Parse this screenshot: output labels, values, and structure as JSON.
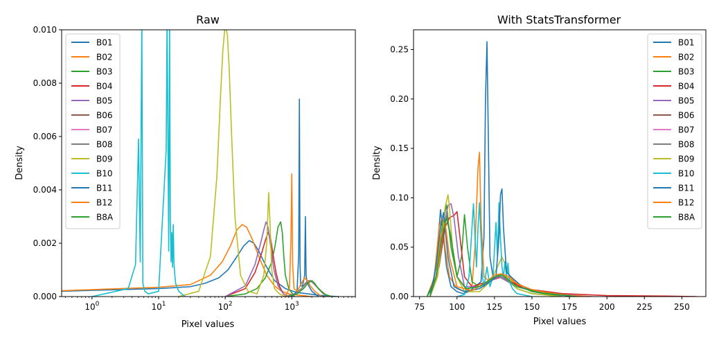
{
  "chart_data": [
    {
      "type": "line",
      "title": "Raw",
      "xlabel": "Pixel values",
      "ylabel": "Density",
      "xscale": "log",
      "xlim": [
        0.35,
        9000
      ],
      "ylim": [
        0,
        0.01
      ],
      "x_ticks": [
        1,
        10,
        100,
        1000
      ],
      "x_tick_labels": [
        "10",
        "10",
        "10",
        "10"
      ],
      "x_tick_exponents": [
        "0",
        "1",
        "2",
        "3"
      ],
      "y_ticks": [
        0,
        0.002,
        0.004,
        0.006,
        0.008,
        0.01
      ],
      "y_tick_labels": [
        "0.000",
        "0.002",
        "0.004",
        "0.006",
        "0.008",
        "0.010"
      ],
      "legend_position": "top-left",
      "grid": false,
      "series": [
        {
          "name": "B01",
          "color": "#1f77b4",
          "x": [
            0.35,
            10,
            30,
            50,
            80,
            110,
            150,
            190,
            230,
            270,
            320,
            400,
            550,
            800,
            1200,
            1800,
            2500,
            3500,
            5000
          ],
          "y": [
            0.0002,
            0.0003,
            0.00037,
            0.0005,
            0.0007,
            0.001,
            0.0015,
            0.0019,
            0.0021,
            0.002,
            0.0017,
            0.0012,
            0.0006,
            0.0003,
            0.00015,
            0.0001,
            5e-05,
            2e-05,
            0
          ]
        },
        {
          "name": "B02",
          "color": "#ff7f0e",
          "x": [
            0.35,
            10,
            30,
            60,
            90,
            120,
            150,
            180,
            210,
            250,
            320,
            420,
            550,
            700,
            900,
            1300,
            2000
          ],
          "y": [
            0.00022,
            0.00035,
            0.00045,
            0.0008,
            0.0013,
            0.0019,
            0.0025,
            0.0027,
            0.0026,
            0.0022,
            0.0015,
            0.0008,
            0.0004,
            0.0002,
            0.0001,
            5e-05,
            0
          ]
        },
        {
          "name": "B03",
          "color": "#2ca02c",
          "x": [
            100,
            200,
            300,
            400,
            500,
            560,
            620,
            680,
            720,
            760,
            800,
            900,
            1100
          ],
          "y": [
            0,
            0.0001,
            0.0003,
            0.0007,
            0.0013,
            0.0019,
            0.0026,
            0.0028,
            0.0024,
            0.0015,
            0.0008,
            0.0003,
            0
          ]
        },
        {
          "name": "B04",
          "color": "#d62728",
          "x": [
            100,
            200,
            280,
            350,
            400,
            440,
            480,
            520,
            580,
            650,
            750,
            900
          ],
          "y": [
            0,
            0.0003,
            0.0009,
            0.0016,
            0.0021,
            0.0024,
            0.0022,
            0.0016,
            0.0009,
            0.0004,
            0.0001,
            0
          ]
        },
        {
          "name": "B05",
          "color": "#9467bd",
          "x": [
            100,
            200,
            280,
            340,
            380,
            410,
            440,
            480,
            540,
            620,
            750,
            900
          ],
          "y": [
            0,
            0.0004,
            0.0012,
            0.002,
            0.0025,
            0.0028,
            0.0026,
            0.0019,
            0.001,
            0.0004,
            0.0001,
            0
          ]
        },
        {
          "name": "B06",
          "color": "#8c564b",
          "x": [
            800,
            1100,
            1400,
            1600,
            1800,
            2000,
            2300,
            2800,
            3500
          ],
          "y": [
            0,
            0.0001,
            0.0003,
            0.0005,
            0.0006,
            0.00055,
            0.0004,
            0.0002,
            0
          ]
        },
        {
          "name": "B07",
          "color": "#e377c2",
          "x": [
            800,
            1100,
            1400,
            1650,
            1850,
            2100,
            2400,
            2900,
            3600
          ],
          "y": [
            0,
            0.0001,
            0.0003,
            0.0005,
            0.0006,
            0.0005,
            0.00035,
            0.00015,
            0
          ]
        },
        {
          "name": "B08",
          "color": "#7f7f7f",
          "x": [
            800,
            1100,
            1400,
            1650,
            1900,
            2150,
            2500,
            3000,
            3800
          ],
          "y": [
            0,
            0.0001,
            0.0003,
            0.0005,
            0.0006,
            0.0005,
            0.0003,
            0.0001,
            0
          ]
        },
        {
          "name": "B09",
          "color": "#bcbd22",
          "x": [
            20,
            40,
            60,
            75,
            85,
            92,
            100,
            108,
            115,
            125,
            140,
            170,
            220,
            300,
            380,
            420,
            450,
            470,
            500,
            550,
            650,
            800
          ],
          "y": [
            0,
            0.0002,
            0.0015,
            0.0045,
            0.0075,
            0.0092,
            0.0102,
            0.0098,
            0.0085,
            0.006,
            0.003,
            0.0008,
            0.0002,
            0.0001,
            0.0008,
            0.002,
            0.0039,
            0.0028,
            0.001,
            0.0003,
            0.0001,
            0
          ]
        },
        {
          "name": "B10",
          "color": "#17becf",
          "x": [
            1,
            3.5,
            4.5,
            5.0,
            5.3,
            5.6,
            5.8,
            6.2,
            7,
            10,
            13,
            13.4,
            13.8,
            14.2,
            14.6,
            15.0,
            15.4,
            15.8,
            16.2,
            16.6,
            17.0,
            17.4,
            18,
            20,
            25
          ],
          "y": [
            0,
            0.0003,
            0.0012,
            0.0059,
            0.0013,
            0.0105,
            0.0005,
            0.0002,
            0.0001,
            0.0002,
            0.0055,
            0.0105,
            0.006,
            0.0017,
            0.0105,
            0.003,
            0.0013,
            0.0024,
            0.0011,
            0.0027,
            0.0013,
            0.0009,
            0.0005,
            0.0002,
            0
          ]
        },
        {
          "name": "B11",
          "color": "#1f77b4",
          "x": [
            1000,
            1200,
            1270,
            1300,
            1330,
            1360,
            1450,
            1560,
            1600,
            1640,
            1680,
            1800,
            2000,
            2500
          ],
          "y": [
            0,
            0.0002,
            0.0016,
            0.0074,
            0.0012,
            0.0004,
            0.0004,
            0.0008,
            0.003,
            0.0008,
            0.0006,
            0.0004,
            0.0002,
            0
          ]
        },
        {
          "name": "B12",
          "color": "#ff7f0e",
          "x": [
            800,
            920,
            970,
            1000,
            1030,
            1080,
            1200,
            1400,
            1550,
            1700,
            1900,
            2200,
            2800
          ],
          "y": [
            0,
            0.0003,
            0.002,
            0.0046,
            0.0012,
            0.0003,
            0.0002,
            0.0005,
            0.0007,
            0.0006,
            0.0004,
            0.0002,
            0
          ]
        },
        {
          "name": "B8A",
          "color": "#2ca02c",
          "x": [
            900,
            1200,
            1500,
            1750,
            2000,
            2200,
            2500,
            3000,
            4000
          ],
          "y": [
            0,
            0.0001,
            0.0003,
            0.0005,
            0.0006,
            0.0005,
            0.0003,
            0.0001,
            0
          ]
        }
      ]
    },
    {
      "type": "line",
      "title": "With StatsTransformer",
      "xlabel": "Pixel values",
      "ylabel": "Density",
      "xlim": [
        71,
        266
      ],
      "ylim": [
        0,
        0.27
      ],
      "x_ticks": [
        75,
        100,
        125,
        150,
        175,
        200,
        225,
        250
      ],
      "x_tick_labels": [
        "75",
        "100",
        "125",
        "150",
        "175",
        "200",
        "225",
        "250"
      ],
      "y_ticks": [
        0,
        0.05,
        0.1,
        0.15,
        0.2,
        0.25
      ],
      "y_tick_labels": [
        "0.00",
        "0.05",
        "0.10",
        "0.15",
        "0.20",
        "0.25"
      ],
      "legend_position": "top-right",
      "grid": false,
      "series": [
        {
          "name": "B01",
          "color": "#1f77b4",
          "x": [
            80,
            84,
            87,
            89,
            91,
            93,
            96,
            100,
            104,
            108,
            112,
            116,
            118,
            119,
            120,
            121,
            122,
            124,
            127,
            130,
            135,
            140,
            150,
            170
          ],
          "y": [
            0,
            0.01,
            0.05,
            0.088,
            0.06,
            0.03,
            0.01,
            0.005,
            0.003,
            0.005,
            0.01,
            0.015,
            0.06,
            0.2,
            0.258,
            0.15,
            0.04,
            0.02,
            0.02,
            0.02,
            0.015,
            0.008,
            0.003,
            0
          ]
        },
        {
          "name": "B02",
          "color": "#ff7f0e",
          "x": [
            80,
            85,
            88,
            90,
            92,
            95,
            100,
            105,
            110,
            112,
            114,
            115,
            116,
            118,
            122,
            126,
            130,
            135,
            145,
            160,
            180
          ],
          "y": [
            0,
            0.02,
            0.07,
            0.08,
            0.05,
            0.02,
            0.008,
            0.005,
            0.01,
            0.05,
            0.13,
            0.146,
            0.08,
            0.02,
            0.015,
            0.02,
            0.022,
            0.018,
            0.008,
            0.003,
            0
          ]
        },
        {
          "name": "B03",
          "color": "#2ca02c",
          "x": [
            80,
            86,
            90,
            93,
            96,
            100,
            103,
            105,
            107,
            110,
            115,
            120,
            128,
            135,
            150,
            170
          ],
          "y": [
            0,
            0.02,
            0.07,
            0.093,
            0.05,
            0.02,
            0.04,
            0.083,
            0.05,
            0.015,
            0.01,
            0.015,
            0.022,
            0.015,
            0.005,
            0
          ]
        },
        {
          "name": "B04",
          "color": "#d62728",
          "x": [
            82,
            88,
            92,
            95,
            98,
            100,
            102,
            105,
            110,
            120,
            130,
            145,
            170,
            200,
            240,
            260
          ],
          "y": [
            0,
            0.03,
            0.07,
            0.08,
            0.082,
            0.086,
            0.06,
            0.02,
            0.01,
            0.015,
            0.02,
            0.008,
            0.003,
            0.001,
            0.0005,
            0
          ]
        },
        {
          "name": "B05",
          "color": "#9467bd",
          "x": [
            82,
            87,
            91,
            94,
            96,
            98,
            101,
            105,
            115,
            128,
            140,
            160,
            190
          ],
          "y": [
            0,
            0.02,
            0.07,
            0.092,
            0.094,
            0.08,
            0.04,
            0.01,
            0.01,
            0.02,
            0.01,
            0.003,
            0
          ]
        },
        {
          "name": "B06",
          "color": "#8c564b",
          "x": [
            82,
            86,
            90,
            93,
            96,
            100,
            106,
            115,
            125,
            130,
            140,
            155,
            180
          ],
          "y": [
            0,
            0.02,
            0.06,
            0.08,
            0.06,
            0.02,
            0.008,
            0.01,
            0.02,
            0.02,
            0.01,
            0.004,
            0
          ]
        },
        {
          "name": "B07",
          "color": "#e377c2",
          "x": [
            82,
            86,
            90,
            93,
            96,
            100,
            106,
            115,
            125,
            130,
            140,
            155,
            180
          ],
          "y": [
            0,
            0.02,
            0.06,
            0.083,
            0.06,
            0.02,
            0.008,
            0.01,
            0.02,
            0.02,
            0.01,
            0.004,
            0
          ]
        },
        {
          "name": "B08",
          "color": "#7f7f7f",
          "x": [
            82,
            86,
            90,
            93,
            96,
            100,
            106,
            115,
            125,
            130,
            140,
            155,
            180
          ],
          "y": [
            0,
            0.02,
            0.06,
            0.082,
            0.06,
            0.02,
            0.008,
            0.01,
            0.02,
            0.02,
            0.01,
            0.004,
            0
          ]
        },
        {
          "name": "B09",
          "color": "#bcbd22",
          "x": [
            82,
            87,
            90,
            92,
            94,
            95,
            97,
            100,
            105,
            115,
            122,
            127,
            130,
            133,
            136,
            140,
            150,
            170
          ],
          "y": [
            0,
            0.02,
            0.06,
            0.09,
            0.103,
            0.09,
            0.05,
            0.02,
            0.005,
            0.005,
            0.015,
            0.03,
            0.04,
            0.03,
            0.015,
            0.008,
            0.003,
            0
          ]
        },
        {
          "name": "B10",
          "color": "#17becf",
          "x": [
            100,
            105,
            108,
            110,
            111,
            112,
            113,
            114,
            115,
            116,
            117,
            118,
            120,
            122,
            124,
            126,
            127,
            128,
            129,
            130,
            131,
            132,
            133,
            134,
            135,
            137,
            140,
            150
          ],
          "y": [
            0,
            0.002,
            0.02,
            0.07,
            0.094,
            0.06,
            0.03,
            0.07,
            0.095,
            0.06,
            0.02,
            0.01,
            0.03,
            0.01,
            0.02,
            0.075,
            0.04,
            0.095,
            0.06,
            0.03,
            0.02,
            0.035,
            0.02,
            0.034,
            0.015,
            0.008,
            0.003,
            0
          ]
        },
        {
          "name": "B11",
          "color": "#1f77b4",
          "x": [
            82,
            86,
            89,
            91,
            94,
            98,
            105,
            115,
            122,
            126,
            128,
            129,
            130,
            131,
            133,
            136,
            142,
            150,
            165,
            180
          ],
          "y": [
            0,
            0.03,
            0.07,
            0.085,
            0.04,
            0.01,
            0.005,
            0.008,
            0.015,
            0.02,
            0.06,
            0.103,
            0.109,
            0.07,
            0.025,
            0.02,
            0.012,
            0.006,
            0.002,
            0
          ]
        },
        {
          "name": "B12",
          "color": "#ff7f0e",
          "x": [
            82,
            86,
            89,
            92,
            95,
            100,
            110,
            120,
            125,
            130,
            135,
            140,
            150,
            160,
            175,
            190
          ],
          "y": [
            0,
            0.02,
            0.06,
            0.075,
            0.04,
            0.01,
            0.006,
            0.015,
            0.022,
            0.023,
            0.02,
            0.013,
            0.007,
            0.004,
            0.001,
            0
          ]
        },
        {
          "name": "B8A",
          "color": "#2ca02c",
          "x": [
            82,
            86,
            90,
            93,
            96,
            100,
            106,
            115,
            125,
            130,
            140,
            155,
            180
          ],
          "y": [
            0,
            0.02,
            0.06,
            0.08,
            0.06,
            0.02,
            0.008,
            0.01,
            0.02,
            0.022,
            0.01,
            0.004,
            0
          ]
        }
      ]
    }
  ]
}
